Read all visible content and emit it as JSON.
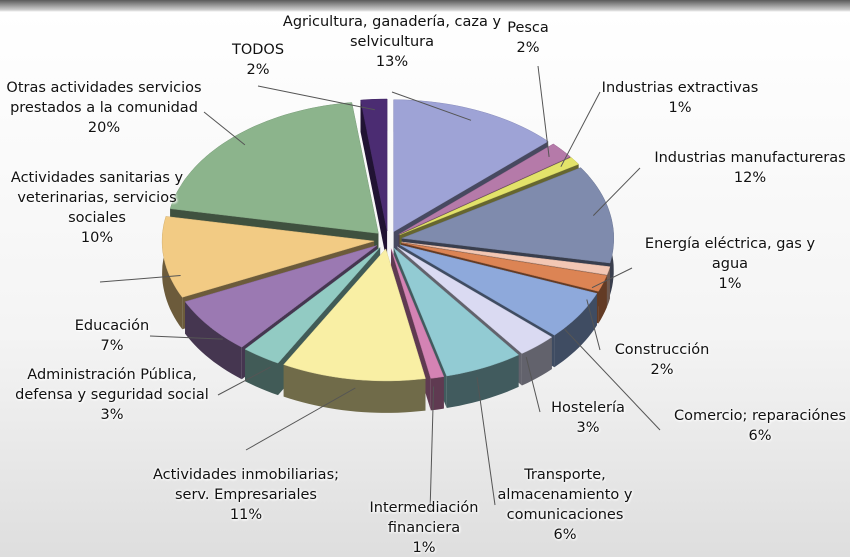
{
  "chart_data": {
    "type": "pie",
    "categories": [
      "Agricultura, ganadería, caza y selvicultura",
      "Pesca",
      "Industrias extractivas",
      "Industrias manufactureras",
      "Energía eléctrica, gas y agua",
      "Construcción",
      "Comercio; reparaciónes",
      "Hostelería",
      "Transporte, almacenamiento y comunicaciones",
      "Intermediación financiera",
      "Actividades inmobiliarias; serv. Empresariales",
      "Administración Pública, defensa y seguridad social",
      "Educación",
      "Actividades sanitarias y veterinarias, servicios sociales",
      "Otras actividades servicios prestados a la comunidad",
      "TODOS"
    ],
    "values": [
      13,
      2,
      1,
      12,
      1,
      2,
      6,
      3,
      6,
      1,
      11,
      3,
      7,
      10,
      20,
      2
    ],
    "value_labels": [
      "13%",
      "2%",
      "1%",
      "12%",
      "1%",
      "2%",
      "6%",
      "3%",
      "6%",
      "1%",
      "11%",
      "3%",
      "7%",
      "10%",
      "20%",
      "2%"
    ],
    "colors": [
      "#9ea3d6",
      "#b57aa9",
      "#e3e36a",
      "#7f8bad",
      "#f3c7b4",
      "#dc8454",
      "#8ea9db",
      "#dadaf2",
      "#92cbd3",
      "#d483b4",
      "#f9efa4",
      "#92cbc3",
      "#9b79b2",
      "#f2cb84",
      "#8cb48c",
      "#4b2c72"
    ]
  }
}
